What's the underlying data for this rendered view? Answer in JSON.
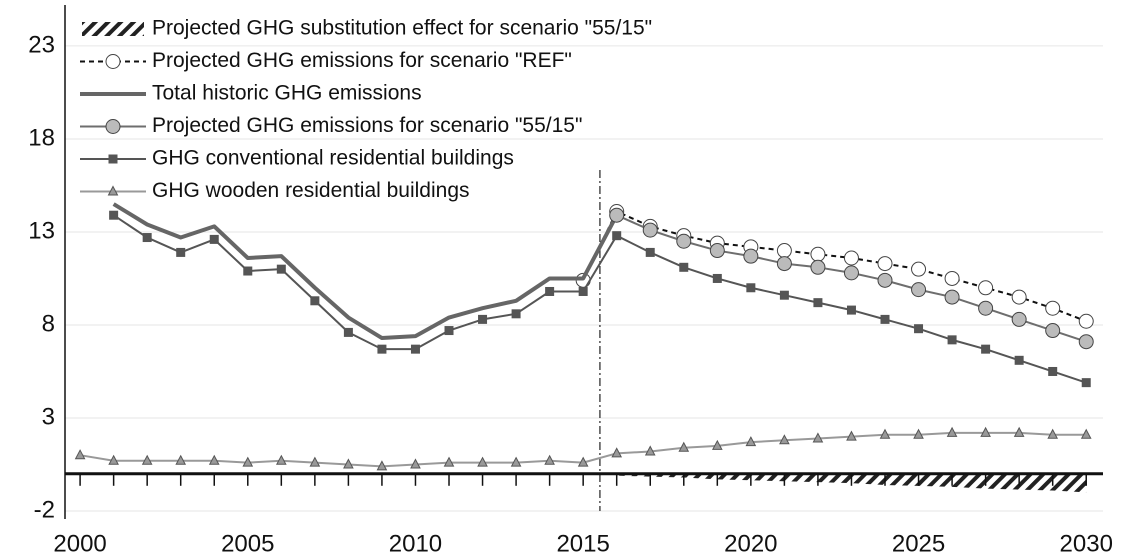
{
  "chart_data": {
    "type": "line",
    "x": [
      2000,
      2001,
      2002,
      2003,
      2004,
      2005,
      2006,
      2007,
      2008,
      2009,
      2010,
      2011,
      2012,
      2013,
      2014,
      2015,
      2016,
      2017,
      2018,
      2019,
      2020,
      2021,
      2022,
      2023,
      2024,
      2025,
      2026,
      2027,
      2028,
      2029,
      2030
    ],
    "series": [
      {
        "name": "Projected GHG substitution effect for scenario  \"55/15\"",
        "style": "hatched-area",
        "color": "#222",
        "values": [
          null,
          null,
          null,
          null,
          null,
          null,
          null,
          null,
          null,
          null,
          null,
          null,
          null,
          null,
          null,
          null,
          -0.1,
          -0.15,
          -0.2,
          -0.3,
          -0.35,
          -0.4,
          -0.45,
          -0.5,
          -0.6,
          -0.65,
          -0.7,
          -0.8,
          -0.85,
          -0.9,
          -1.0
        ]
      },
      {
        "name": "Projected GHG emissions for scenario  \"REF\"",
        "style": "dashed",
        "marker": "circle",
        "color": "#111",
        "marker_fill": "#fff",
        "values": [
          null,
          null,
          null,
          null,
          null,
          null,
          null,
          null,
          null,
          null,
          null,
          null,
          null,
          null,
          null,
          10.4,
          14.1,
          13.3,
          12.8,
          12.4,
          12.2,
          12.0,
          11.8,
          11.6,
          11.3,
          11.0,
          10.5,
          10.0,
          9.5,
          8.9,
          8.2
        ]
      },
      {
        "name": "Total historic GHG emissions",
        "style": "thick",
        "color": "#666",
        "values": [
          null,
          14.5,
          13.4,
          12.7,
          13.3,
          11.6,
          11.7,
          10.0,
          8.4,
          7.3,
          7.4,
          8.4,
          8.9,
          9.3,
          10.5,
          10.5,
          13.9,
          null,
          null,
          null,
          null,
          null,
          null,
          null,
          null,
          null,
          null,
          null,
          null,
          null,
          null
        ]
      },
      {
        "name": "Projected GHG emissions for scenario \"55/15\"",
        "style": "solid",
        "marker": "circle",
        "color": "#6e6e6e",
        "marker_fill": "#bbb",
        "values": [
          null,
          null,
          null,
          null,
          null,
          null,
          null,
          null,
          null,
          null,
          null,
          null,
          null,
          null,
          null,
          null,
          13.9,
          13.1,
          12.5,
          12.0,
          11.7,
          11.3,
          11.1,
          10.8,
          10.4,
          9.9,
          9.5,
          8.9,
          8.3,
          7.7,
          7.1
        ]
      },
      {
        "name": "GHG conventional residential buildings",
        "style": "solid",
        "marker": "square",
        "color": "#555",
        "marker_fill": "#555",
        "values": [
          null,
          13.9,
          12.7,
          11.9,
          12.6,
          10.9,
          11.0,
          9.3,
          7.6,
          6.7,
          6.7,
          7.7,
          8.3,
          8.6,
          9.8,
          9.8,
          12.8,
          11.9,
          11.1,
          10.5,
          10.0,
          9.6,
          9.2,
          8.8,
          8.3,
          7.8,
          7.2,
          6.7,
          6.1,
          5.5,
          4.9
        ]
      },
      {
        "name": "GHG wooden residential buildings",
        "style": "solid",
        "marker": "triangle",
        "color": "#999",
        "marker_fill": "#999",
        "values": [
          1.0,
          0.7,
          0.7,
          0.7,
          0.7,
          0.6,
          0.7,
          0.6,
          0.5,
          0.4,
          0.5,
          0.6,
          0.6,
          0.6,
          0.7,
          0.6,
          1.1,
          1.2,
          1.4,
          1.5,
          1.7,
          1.8,
          1.9,
          2.0,
          2.1,
          2.1,
          2.2,
          2.2,
          2.2,
          2.1,
          2.1
        ]
      }
    ],
    "xlim": [
      1999.55,
      2030.5
    ],
    "ylim": [
      -2,
      25.2
    ],
    "xticks": [
      2000,
      2005,
      2010,
      2015,
      2020,
      2025,
      2030
    ],
    "yticks": [
      -2,
      3,
      8,
      13,
      18,
      23
    ],
    "grid": true,
    "legend": "top-left",
    "vertical_line": {
      "x": 2015.5,
      "style": "dash-dot"
    }
  }
}
